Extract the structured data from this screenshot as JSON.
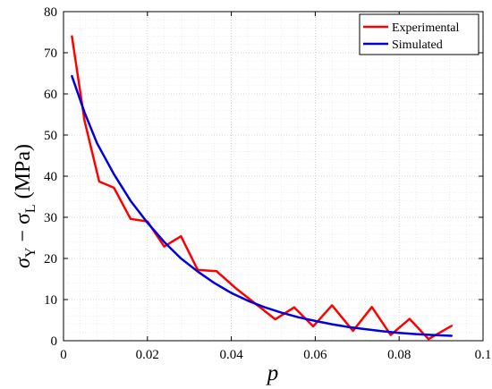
{
  "chart_data": {
    "type": "line",
    "xlabel": "p",
    "ylabel_parts": [
      "σ",
      "Y",
      " − σ",
      "L",
      " (MPa)"
    ],
    "xlim": [
      0,
      0.1
    ],
    "ylim": [
      0,
      80
    ],
    "x_ticks": [
      0,
      0.02,
      0.04,
      0.06,
      0.08,
      0.1
    ],
    "x_tick_labels": [
      "0",
      "0.02",
      "0.04",
      "0.06",
      "0.08",
      "0.1"
    ],
    "y_ticks": [
      0,
      10,
      20,
      30,
      40,
      50,
      60,
      70,
      80
    ],
    "y_tick_labels": [
      "0",
      "10",
      "20",
      "30",
      "40",
      "50",
      "60",
      "70",
      "80"
    ],
    "grid": true,
    "legend_position": "top-right",
    "series": [
      {
        "name": "Experimental",
        "color": "#ff0000",
        "x": [
          0.002,
          0.005,
          0.0085,
          0.012,
          0.016,
          0.02,
          0.024,
          0.028,
          0.032,
          0.0365,
          0.041,
          0.046,
          0.0505,
          0.055,
          0.0595,
          0.064,
          0.069,
          0.0735,
          0.078,
          0.0825,
          0.087,
          0.0925
        ],
        "y": [
          74,
          53.5,
          38.7,
          37.2,
          29.6,
          29.0,
          22.9,
          25.4,
          17.2,
          16.9,
          12.8,
          8.8,
          5.2,
          8.1,
          3.5,
          8.6,
          2.4,
          8.2,
          1.4,
          5.3,
          0.4,
          3.6
        ]
      },
      {
        "name": "Simulated",
        "color": "#0000dd",
        "x": [
          0.002,
          0.005,
          0.008,
          0.012,
          0.016,
          0.02,
          0.024,
          0.028,
          0.032,
          0.036,
          0.04,
          0.044,
          0.048,
          0.052,
          0.056,
          0.06,
          0.064,
          0.068,
          0.072,
          0.076,
          0.08,
          0.084,
          0.088,
          0.0925
        ],
        "y": [
          64.3,
          55.5,
          48.0,
          40.5,
          34.0,
          28.7,
          24.0,
          20.0,
          16.8,
          14.0,
          11.6,
          9.7,
          8.1,
          6.8,
          5.7,
          4.8,
          4.0,
          3.3,
          2.8,
          2.3,
          1.9,
          1.6,
          1.4,
          1.2
        ]
      }
    ]
  }
}
